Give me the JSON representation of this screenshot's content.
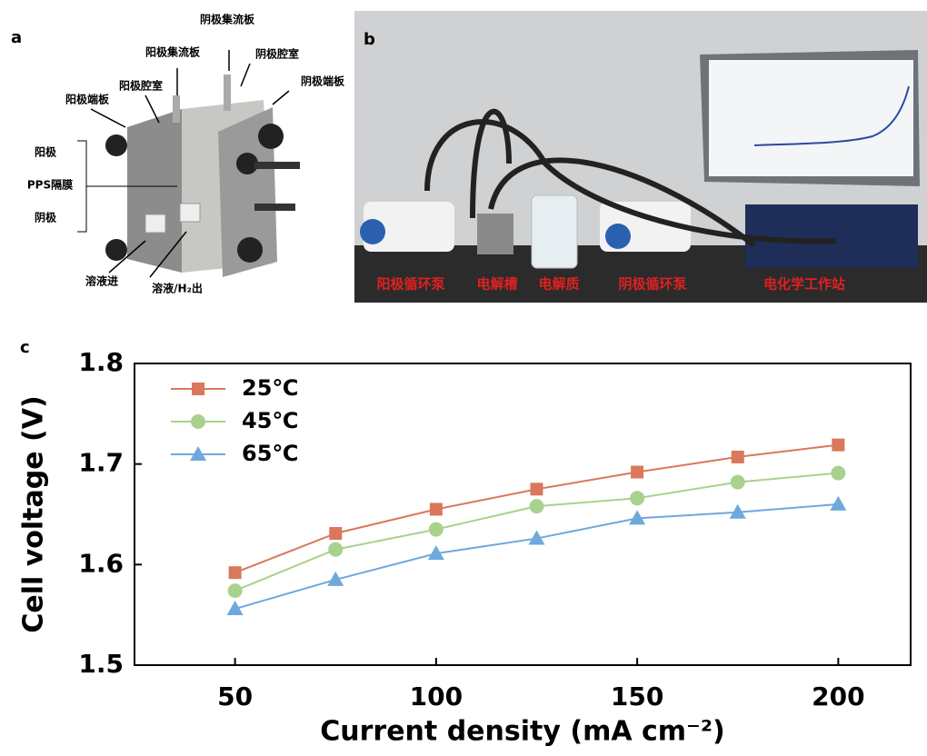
{
  "panel_a": {
    "letter": "a",
    "labels": [
      "阴极集流板",
      "阳极集流板",
      "阴极腔室",
      "阳极腔室",
      "阴极端板",
      "阳极端板",
      "阳极",
      "PPS隔膜",
      "阴极",
      "溶液进",
      "溶液/H₂出"
    ]
  },
  "panel_b": {
    "letter": "b",
    "labels": [
      "阳极循环泵",
      "电解槽",
      "电解质",
      "阴极循环泵",
      "电化学工作站"
    ]
  },
  "panel_c": {
    "letter": "c"
  },
  "chart_data": {
    "type": "line",
    "xlabel": "Current density (mA cm⁻²)",
    "ylabel": "Cell voltage (V)",
    "x": [
      50,
      75,
      100,
      125,
      150,
      175,
      200
    ],
    "series": [
      {
        "name": "25℃",
        "color": "#d9785a",
        "marker": "square",
        "values": [
          1.592,
          1.631,
          1.655,
          1.675,
          1.692,
          1.707,
          1.719
        ]
      },
      {
        "name": "45℃",
        "color": "#a9d18e",
        "marker": "circle",
        "values": [
          1.574,
          1.615,
          1.635,
          1.658,
          1.666,
          1.682,
          1.691
        ]
      },
      {
        "name": "65℃",
        "color": "#6fa8dc",
        "marker": "triangle",
        "values": [
          1.556,
          1.585,
          1.611,
          1.626,
          1.646,
          1.652,
          1.66
        ]
      }
    ],
    "xlim": [
      25,
      218
    ],
    "ylim": [
      1.5,
      1.8
    ],
    "xticks": [
      50,
      100,
      150,
      200
    ],
    "yticks": [
      1.5,
      1.6,
      1.7,
      1.8
    ],
    "legend": "upper left"
  }
}
